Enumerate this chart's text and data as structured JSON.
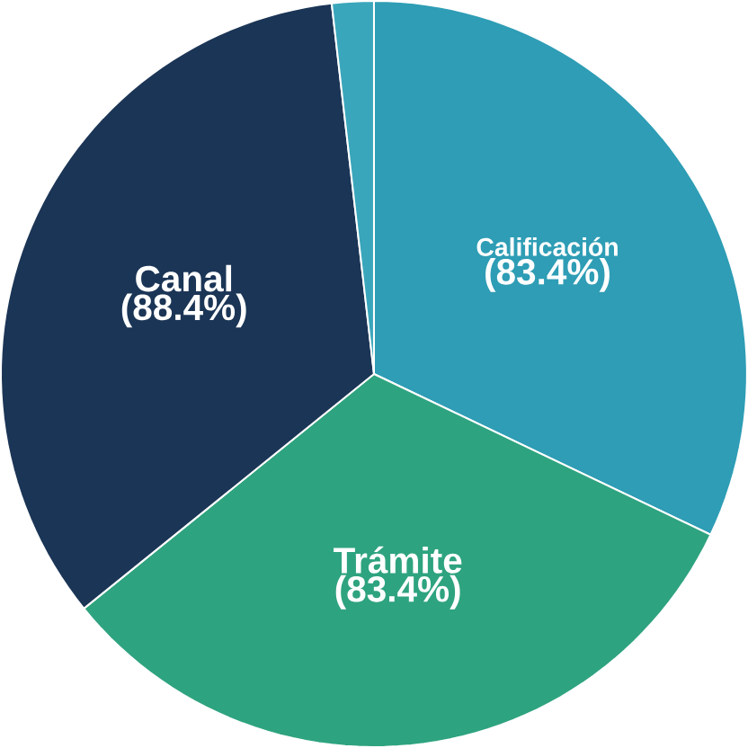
{
  "chart_data": {
    "type": "pie",
    "categories": [
      "Calificación",
      "Trámite",
      "Canal",
      null
    ],
    "values": [
      83.4,
      83.4,
      88.4,
      4.7
    ],
    "value_labels": [
      "(83.4%)",
      "(83.4%)",
      "(88.4%)",
      null
    ],
    "colors": [
      "#2e9db5",
      "#2ea37f",
      "#1b3556",
      "#3aa6bb"
    ]
  }
}
